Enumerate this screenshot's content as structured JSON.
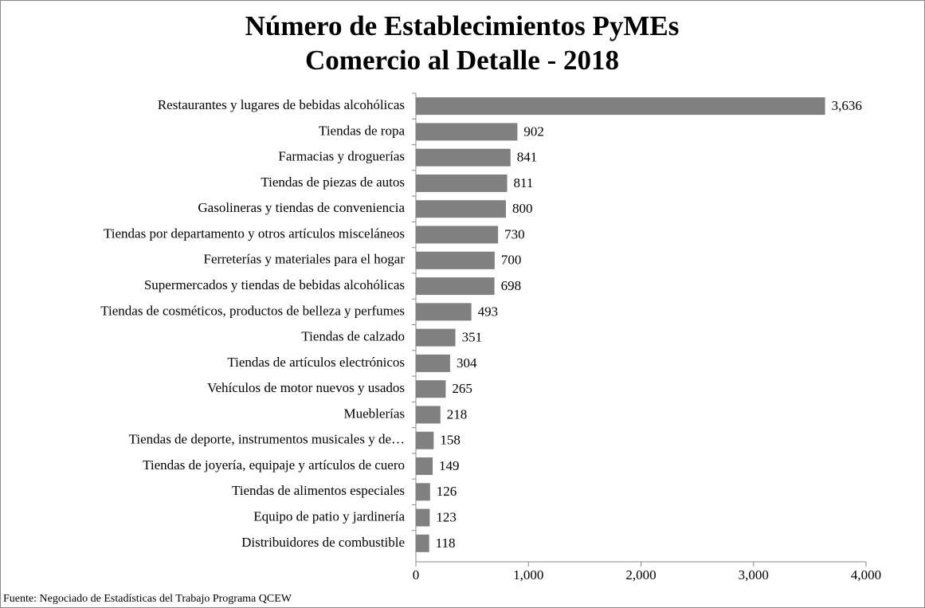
{
  "chart_data": {
    "type": "bar",
    "orientation": "horizontal",
    "title": "Número de Establecimientos PyMEs",
    "subtitle": "Comercio al Detalle - 2018",
    "source": "Fuente: Negociado de Estadísticas del Trabajo Programa QCEW",
    "categories": [
      "Restaurantes y lugares de bebidas alcohólicas",
      "Tiendas de ropa",
      "Farmacias y droguerías",
      "Tiendas de piezas de autos",
      "Gasolineras y tiendas de conveniencia",
      "Tiendas por departamento y otros artículos misceláneos",
      "Ferreterías y materiales para el hogar",
      "Supermercados y tiendas de bebidas alcohólicas",
      "Tiendas de cosméticos, productos de belleza y perfumes",
      "Tiendas de calzado",
      "Tiendas de artículos electrónicos",
      "Vehículos de motor nuevos y usados",
      "Mueblerías",
      "Tiendas de deporte, instrumentos musicales y de…",
      "Tiendas de joyería, equipaje y artículos de cuero",
      "Tiendas de alimentos especiales",
      "Equipo de patio y jardinería",
      "Distribuidores de combustible"
    ],
    "values": [
      3636,
      902,
      841,
      811,
      800,
      730,
      700,
      698,
      493,
      351,
      304,
      265,
      218,
      158,
      149,
      126,
      123,
      118
    ],
    "value_labels": [
      "3,636",
      "902",
      "841",
      "811",
      "800",
      "730",
      "700",
      "698",
      "493",
      "351",
      "304",
      "265",
      "218",
      "158",
      "149",
      "126",
      "123",
      "118"
    ],
    "color": "#808080",
    "xlim": [
      0,
      4000
    ],
    "xticks": [
      0,
      {
        "value": 1000,
        "label": "1,000"
      },
      {
        "value": 2000,
        "label": "2,000"
      },
      {
        "value": 3000,
        "label": "3,000"
      },
      {
        "value": 4000,
        "label": "4,000"
      }
    ]
  }
}
